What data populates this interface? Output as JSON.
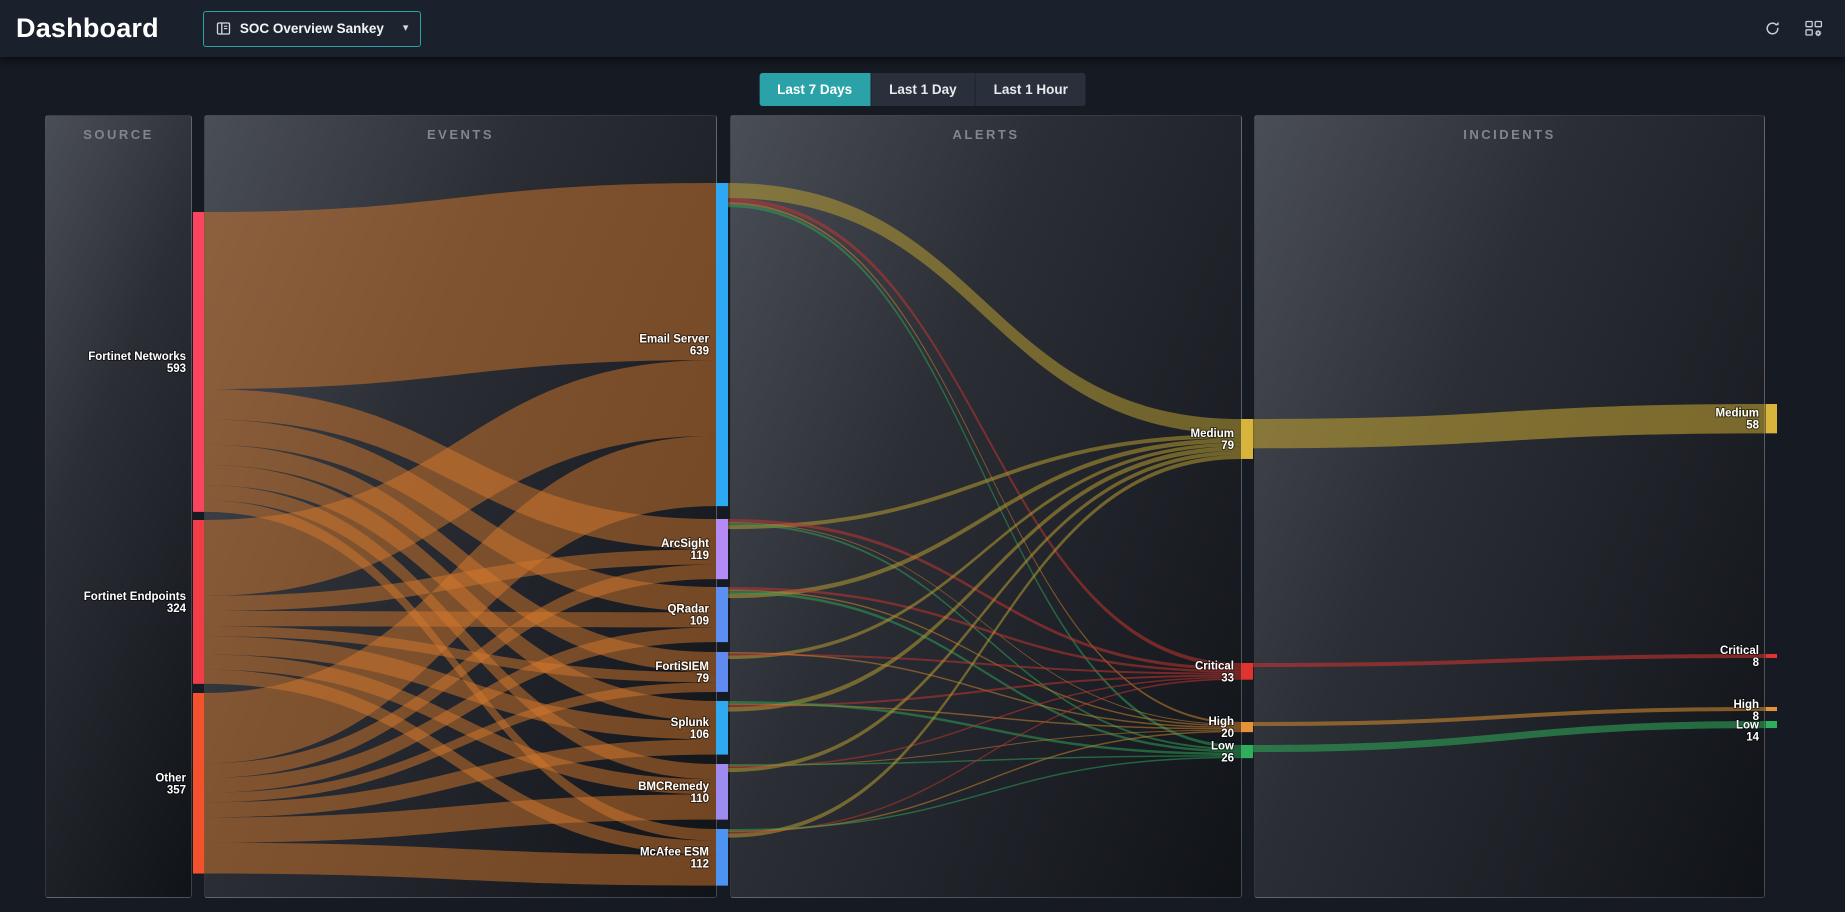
{
  "header": {
    "title": "Dashboard",
    "dashboard_selector": {
      "label": "SOC Overview Sankey",
      "caret": "▾"
    },
    "icons": {
      "selector": "dashboard-widget-icon",
      "refresh": "refresh-icon",
      "widgets": "widget-settings-icon"
    }
  },
  "time_filters": {
    "options": [
      "Last 7 Days",
      "Last 1 Day",
      "Last 1 Hour"
    ],
    "active": "Last 7 Days"
  },
  "chart_data": {
    "type": "sankey",
    "columns": [
      {
        "id": "source",
        "title": "SOURCE"
      },
      {
        "id": "events",
        "title": "EVENTS"
      },
      {
        "id": "alerts",
        "title": "ALERTS"
      },
      {
        "id": "incidents",
        "title": "INCIDENTS"
      }
    ],
    "nodes": [
      {
        "id": "fortinet-networks",
        "column": "source",
        "label": "Fortinet Networks",
        "value": 593,
        "color": "#FB4560"
      },
      {
        "id": "fortinet-endpoints",
        "column": "source",
        "label": "Fortinet Endpoints",
        "value": 324,
        "color": "#F23D49"
      },
      {
        "id": "other",
        "column": "source",
        "label": "Other",
        "value": 357,
        "color": "#F4512D"
      },
      {
        "id": "email-server",
        "column": "events",
        "label": "Email Server",
        "value": 639,
        "color": "#2CA9F2"
      },
      {
        "id": "arcsight",
        "column": "events",
        "label": "ArcSight",
        "value": 119,
        "color": "#B48BF5"
      },
      {
        "id": "qradar",
        "column": "events",
        "label": "QRadar",
        "value": 109,
        "color": "#5B90F2"
      },
      {
        "id": "fortisiem",
        "column": "events",
        "label": "FortiSIEM",
        "value": 79,
        "color": "#5F8AF0"
      },
      {
        "id": "splunk",
        "column": "events",
        "label": "Splunk",
        "value": 106,
        "color": "#2FA9F0"
      },
      {
        "id": "bmcremedy",
        "column": "events",
        "label": "BMCRemedy",
        "value": 110,
        "color": "#9D8BF0"
      },
      {
        "id": "mcafee-esm",
        "column": "events",
        "label": "McAfee ESM",
        "value": 112,
        "color": "#4D94F2"
      },
      {
        "id": "alert-medium",
        "column": "alerts",
        "label": "Medium",
        "value": 79,
        "color": "#D9B43C"
      },
      {
        "id": "alert-critical",
        "column": "alerts",
        "label": "Critical",
        "value": 33,
        "color": "#E0352F"
      },
      {
        "id": "alert-high",
        "column": "alerts",
        "label": "High",
        "value": 20,
        "color": "#E8913B"
      },
      {
        "id": "alert-low",
        "column": "alerts",
        "label": "Low",
        "value": 26,
        "color": "#2FAE5C"
      },
      {
        "id": "incident-medium",
        "column": "incidents",
        "label": "Medium",
        "value": 58,
        "color": "#D9B43C"
      },
      {
        "id": "incident-critical",
        "column": "incidents",
        "label": "Critical",
        "value": 8,
        "color": "#E0352F"
      },
      {
        "id": "incident-high",
        "column": "incidents",
        "label": "High",
        "value": 8,
        "color": "#E8913B"
      },
      {
        "id": "incident-low",
        "column": "incidents",
        "label": "Low",
        "value": 14,
        "color": "#2FAE5C"
      }
    ],
    "links_estimated": true,
    "links": [
      {
        "source": "fortinet-networks",
        "target": "email-server",
        "value": 350,
        "color": "#D4772C"
      },
      {
        "source": "fortinet-networks",
        "target": "arcsight",
        "value": 60,
        "color": "#D4772C"
      },
      {
        "source": "fortinet-networks",
        "target": "qradar",
        "value": 50,
        "color": "#D4772C"
      },
      {
        "source": "fortinet-networks",
        "target": "fortisiem",
        "value": 40,
        "color": "#D4772C"
      },
      {
        "source": "fortinet-networks",
        "target": "splunk",
        "value": 40,
        "color": "#D4772C"
      },
      {
        "source": "fortinet-networks",
        "target": "bmcremedy",
        "value": 30,
        "color": "#D4772C"
      },
      {
        "source": "fortinet-networks",
        "target": "mcafee-esm",
        "value": 23,
        "color": "#D4772C"
      },
      {
        "source": "fortinet-endpoints",
        "target": "email-server",
        "value": 150,
        "color": "#D4772C"
      },
      {
        "source": "fortinet-endpoints",
        "target": "arcsight",
        "value": 30,
        "color": "#D4772C"
      },
      {
        "source": "fortinet-endpoints",
        "target": "qradar",
        "value": 30,
        "color": "#D4772C"
      },
      {
        "source": "fortinet-endpoints",
        "target": "fortisiem",
        "value": 20,
        "color": "#D4772C"
      },
      {
        "source": "fortinet-endpoints",
        "target": "splunk",
        "value": 36,
        "color": "#D4772C"
      },
      {
        "source": "fortinet-endpoints",
        "target": "bmcremedy",
        "value": 30,
        "color": "#D4772C"
      },
      {
        "source": "fortinet-endpoints",
        "target": "mcafee-esm",
        "value": 28,
        "color": "#D4772C"
      },
      {
        "source": "other",
        "target": "email-server",
        "value": 139,
        "color": "#D4772C"
      },
      {
        "source": "other",
        "target": "arcsight",
        "value": 29,
        "color": "#D4772C"
      },
      {
        "source": "other",
        "target": "qradar",
        "value": 29,
        "color": "#D4772C"
      },
      {
        "source": "other",
        "target": "fortisiem",
        "value": 19,
        "color": "#D4772C"
      },
      {
        "source": "other",
        "target": "splunk",
        "value": 30,
        "color": "#D4772C"
      },
      {
        "source": "other",
        "target": "bmcremedy",
        "value": 50,
        "color": "#D4772C"
      },
      {
        "source": "other",
        "target": "mcafee-esm",
        "value": 61,
        "color": "#D4772C"
      },
      {
        "source": "email-server",
        "target": "alert-medium",
        "value": 30,
        "color": "#B69A32"
      },
      {
        "source": "email-server",
        "target": "alert-critical",
        "value": 8,
        "color": "#C03430"
      },
      {
        "source": "email-server",
        "target": "alert-high",
        "value": 4,
        "color": "#C8812F"
      },
      {
        "source": "email-server",
        "target": "alert-low",
        "value": 6,
        "color": "#2E9E55"
      },
      {
        "source": "arcsight",
        "target": "alert-medium",
        "value": 8,
        "color": "#B69A32"
      },
      {
        "source": "arcsight",
        "target": "alert-critical",
        "value": 6,
        "color": "#C03430"
      },
      {
        "source": "arcsight",
        "target": "alert-high",
        "value": 2,
        "color": "#C8812F"
      },
      {
        "source": "arcsight",
        "target": "alert-low",
        "value": 4,
        "color": "#2E9E55"
      },
      {
        "source": "qradar",
        "target": "alert-medium",
        "value": 9,
        "color": "#B69A32"
      },
      {
        "source": "qradar",
        "target": "alert-critical",
        "value": 5,
        "color": "#C03430"
      },
      {
        "source": "qradar",
        "target": "alert-high",
        "value": 3,
        "color": "#C8812F"
      },
      {
        "source": "qradar",
        "target": "alert-low",
        "value": 5,
        "color": "#2E9E55"
      },
      {
        "source": "fortisiem",
        "target": "alert-medium",
        "value": 7,
        "color": "#B69A32"
      },
      {
        "source": "fortisiem",
        "target": "alert-critical",
        "value": 4,
        "color": "#C03430"
      },
      {
        "source": "fortisiem",
        "target": "alert-high",
        "value": 3,
        "color": "#C8812F"
      },
      {
        "source": "splunk",
        "target": "alert-medium",
        "value": 9,
        "color": "#B69A32"
      },
      {
        "source": "splunk",
        "target": "alert-critical",
        "value": 4,
        "color": "#C03430"
      },
      {
        "source": "splunk",
        "target": "alert-high",
        "value": 3,
        "color": "#C8812F"
      },
      {
        "source": "splunk",
        "target": "alert-low",
        "value": 5,
        "color": "#2E9E55"
      },
      {
        "source": "bmcremedy",
        "target": "alert-medium",
        "value": 8,
        "color": "#B69A32"
      },
      {
        "source": "bmcremedy",
        "target": "alert-critical",
        "value": 3,
        "color": "#C03430"
      },
      {
        "source": "bmcremedy",
        "target": "alert-high",
        "value": 2,
        "color": "#C8812F"
      },
      {
        "source": "bmcremedy",
        "target": "alert-low",
        "value": 3,
        "color": "#2E9E55"
      },
      {
        "source": "mcafee-esm",
        "target": "alert-medium",
        "value": 8,
        "color": "#B69A32"
      },
      {
        "source": "mcafee-esm",
        "target": "alert-critical",
        "value": 3,
        "color": "#C03430"
      },
      {
        "source": "mcafee-esm",
        "target": "alert-high",
        "value": 3,
        "color": "#C8812F"
      },
      {
        "source": "mcafee-esm",
        "target": "alert-low",
        "value": 3,
        "color": "#2E9E55"
      },
      {
        "source": "alert-medium",
        "target": "incident-medium",
        "value": 58,
        "color": "#B69A32"
      },
      {
        "source": "alert-critical",
        "target": "incident-critical",
        "value": 8,
        "color": "#C03430"
      },
      {
        "source": "alert-high",
        "target": "incident-high",
        "value": 8,
        "color": "#C8812F"
      },
      {
        "source": "alert-low",
        "target": "incident-low",
        "value": 14,
        "color": "#2E9E55"
      }
    ]
  }
}
